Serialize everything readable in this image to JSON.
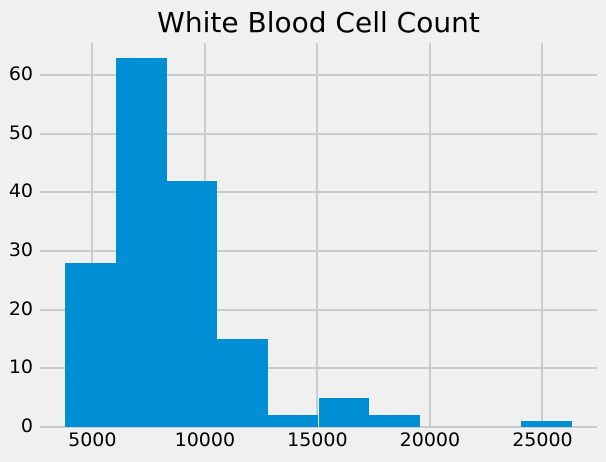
{
  "figure": {
    "background_color": "#f0f0f0",
    "grid_color": "#cbcbcb",
    "text_color": "#000000"
  },
  "chart_data": {
    "type": "bar",
    "subtype": "histogram",
    "title": "White Blood Cell Count",
    "xlabel": "",
    "ylabel": "",
    "bar_color": "#008fd5",
    "bin_edges": [
      3800,
      6050,
      8300,
      10550,
      12800,
      15050,
      17300,
      19550,
      21800,
      24050,
      26300
    ],
    "counts": [
      28,
      63,
      42,
      15,
      2,
      5,
      2,
      0,
      0,
      1
    ],
    "xlim": [
      2675,
      27425
    ],
    "ylim": [
      0,
      65.5
    ],
    "x_ticks": [
      5000,
      10000,
      15000,
      20000,
      25000
    ],
    "x_tick_labels": [
      "5000",
      "10000",
      "15000",
      "20000",
      "25000"
    ],
    "y_ticks": [
      0,
      10,
      20,
      30,
      40,
      50,
      60
    ],
    "y_tick_labels": [
      "0",
      "10",
      "20",
      "30",
      "40",
      "50",
      "60"
    ],
    "grid": true,
    "legend_position": "none"
  }
}
